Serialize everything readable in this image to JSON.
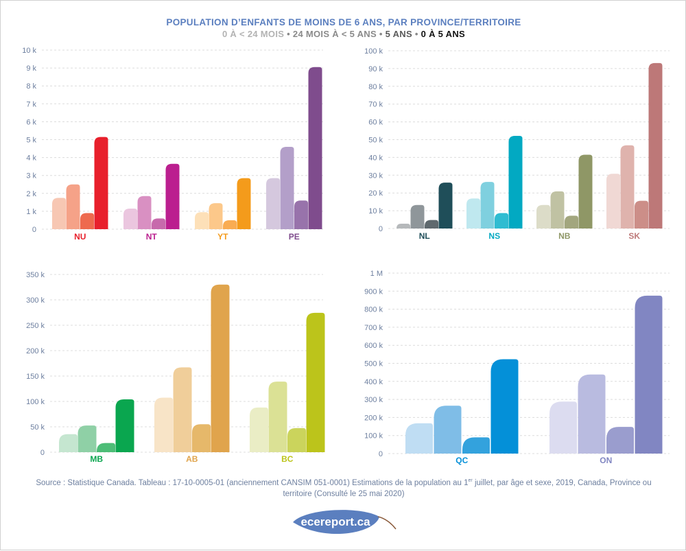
{
  "title": "POPULATION D’ENFANTS DE MOINS DE 6 ANS, PAR PROVINCE/TERRITOIRE",
  "legend": [
    {
      "label": "0 À < 24 MOIS",
      "cls": "s0"
    },
    {
      "label": "24 MOIS À < 5 ANS",
      "cls": "s1"
    },
    {
      "label": "5 ANS",
      "cls": "s2"
    },
    {
      "label": "0 À 5 ANS",
      "cls": "s3"
    }
  ],
  "legend_separator": "•",
  "source": {
    "part1": "Source : Statistique Canada. Tableau : 17-10-0005-01 (anciennement CANSIM 051-0001) Estimations de la population au 1",
    "sup": "er",
    "part2": " juillet, par âge et sexe, 2019, Canada, Province ou territoire (Consulté le 25 mai 2020)"
  },
  "logo": {
    "text": "ecereport.ca",
    "color": "#5b7fbf"
  },
  "chart_data": [
    {
      "type": "bar",
      "ticks": [
        "0",
        "1 k",
        "2 k",
        "3 k",
        "4 k",
        "5 k",
        "6 k",
        "7 k",
        "8 k",
        "9 k",
        "10 k"
      ],
      "ylim": [
        0,
        10000
      ],
      "grid": true,
      "categories": [
        "NU",
        "NT",
        "YT",
        "PE"
      ],
      "series": [
        {
          "values": [
            1750,
            1150,
            950,
            2850
          ]
        },
        {
          "values": [
            2500,
            1850,
            1450,
            4600
          ]
        },
        {
          "values": [
            900,
            600,
            500,
            1600
          ]
        },
        {
          "values": [
            5150,
            3650,
            2850,
            9050
          ]
        }
      ],
      "colors": [
        [
          "#f7c7b3",
          "#f5a288",
          "#ee6a4e",
          "#e8202c"
        ],
        [
          "#ebc6df",
          "#d990c2",
          "#c76aac",
          "#bb1f8f"
        ],
        [
          "#fde0b8",
          "#fcc88a",
          "#f9ac52",
          "#f49b1b"
        ],
        [
          "#d5c8de",
          "#b39fc9",
          "#9873ab",
          "#7f4c8d"
        ]
      ]
    },
    {
      "type": "bar",
      "ticks": [
        "0",
        "10 k",
        "20 k",
        "30 k",
        "40 k",
        "50 k",
        "60 k",
        "70 k",
        "80 k",
        "90 k",
        "100 k"
      ],
      "ylim": [
        0,
        100000
      ],
      "grid": true,
      "categories": [
        "NL",
        "NS",
        "NB",
        "SK"
      ],
      "series": [
        {
          "values": [
            2700,
            16900,
            13200,
            30800
          ]
        },
        {
          "values": [
            13200,
            26200,
            20900,
            46800
          ]
        },
        {
          "values": [
            4800,
            8700,
            7200,
            15600
          ]
        },
        {
          "values": [
            25800,
            52100,
            41500,
            93100
          ]
        }
      ],
      "colors": [
        [
          "#b6b9bb",
          "#8f969a",
          "#5f696e",
          "#1f4e59"
        ],
        [
          "#bfe8ef",
          "#7fd0df",
          "#2fbcd1",
          "#02a9c2"
        ],
        [
          "#dcdcc8",
          "#c0c2a3",
          "#a2a67e",
          "#8f9766"
        ],
        [
          "#f0d8d4",
          "#dfb3ad",
          "#cc8e88",
          "#bd7878"
        ]
      ]
    },
    {
      "type": "bar",
      "ticks": [
        "0",
        "50 k",
        "100 k",
        "150 k",
        "200 k",
        "250 k",
        "300 k",
        "350 k"
      ],
      "ylim": [
        0,
        350000
      ],
      "grid": true,
      "categories": [
        "MB",
        "AB",
        "BC"
      ],
      "series": [
        {
          "values": [
            35500,
            107500,
            88000
          ]
        },
        {
          "values": [
            52500,
            167000,
            139000
          ]
        },
        {
          "values": [
            18000,
            55000,
            47500
          ]
        },
        {
          "values": [
            104000,
            330000,
            274500
          ]
        }
      ],
      "colors": [
        [
          "#c5e6d0",
          "#8fd0a6",
          "#4dbd77",
          "#0aa64f"
        ],
        [
          "#f8e4c7",
          "#f0ce9a",
          "#e6b86a",
          "#e0a44c"
        ],
        [
          "#eaedc5",
          "#dbe195",
          "#cbd45c",
          "#bcc41b"
        ]
      ]
    },
    {
      "type": "bar",
      "ticks": [
        "0",
        "100 k",
        "200 k",
        "300 k",
        "400 k",
        "500 k",
        "600 k",
        "700 k",
        "800 k",
        "900 k",
        "1 M"
      ],
      "ylim": [
        0,
        1000000
      ],
      "grid": true,
      "categories": [
        "QC",
        "ON"
      ],
      "series": [
        {
          "values": [
            168000,
            288000
          ]
        },
        {
          "values": [
            265000,
            438000
          ]
        },
        {
          "values": [
            90000,
            148000
          ]
        },
        {
          "values": [
            523000,
            875000
          ]
        }
      ],
      "colors": [
        [
          "#bfddf3",
          "#7fbde7",
          "#33a2dd",
          "#0490d8"
        ],
        [
          "#dcdcf0",
          "#b9bbe0",
          "#9a9dce",
          "#8186c2"
        ]
      ]
    }
  ]
}
